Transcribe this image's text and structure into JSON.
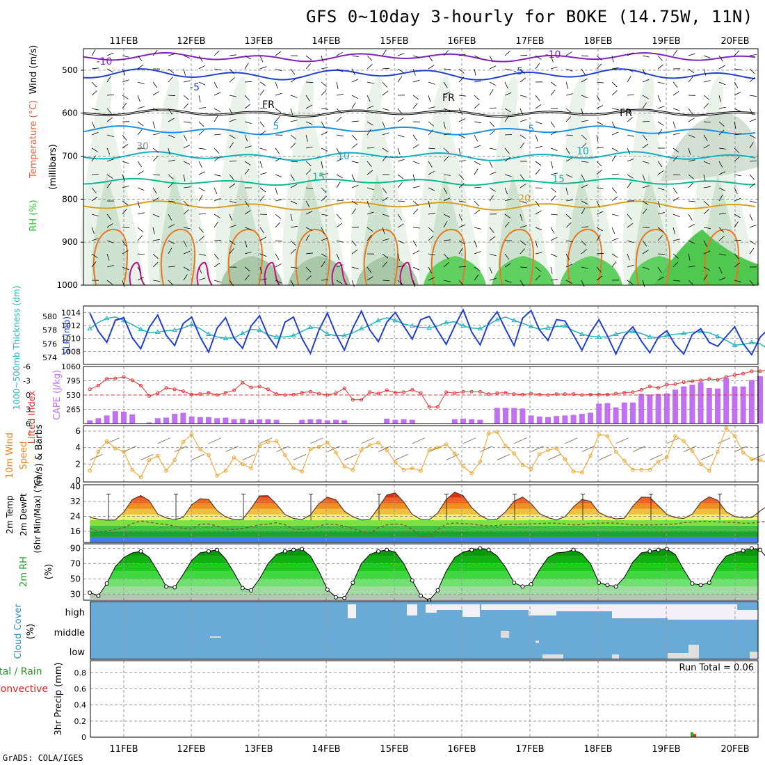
{
  "header": {
    "title": "GFS 0~10day 3-hourly for BOKE (14.75W, 11N)"
  },
  "footer": {
    "credit": "GrADS: COLA/IGES"
  },
  "chart_data": [
    {
      "panel": "upper_air",
      "type": "heatmap",
      "x_dates": [
        "11FEB",
        "12FEB",
        "13FEB",
        "14FEB",
        "15FEB",
        "16FEB",
        "17FEB",
        "18FEB",
        "19FEB",
        "20FEB"
      ],
      "ylabel_parts": [
        "RH (%)",
        "Temperature (°C)",
        "Wind (m/s)",
        "(millibars)"
      ],
      "ylim": [
        1000,
        450
      ],
      "yticks": [
        500,
        600,
        700,
        800,
        900,
        1000
      ],
      "contour_labels": [
        "-10",
        "-10",
        "-5",
        "-5",
        "FR",
        "FR",
        "FR",
        "5",
        "5",
        "10",
        "10",
        "15",
        "15",
        "20",
        "30"
      ],
      "rh_levels": [
        30,
        50,
        70,
        90
      ],
      "temperature_levels": [
        -10,
        -5,
        0,
        5,
        10,
        15,
        20,
        25
      ]
    },
    {
      "panel": "sea_level_pressure_thickness",
      "type": "line",
      "ylabel_left": "1000~500mb Thickness (dm)",
      "ylabel_right": "SLP (mb)",
      "left_ticks": [
        574,
        576,
        578,
        580
      ],
      "right_ticks": [
        1008,
        1010,
        1012,
        1014
      ],
      "series": [
        {
          "name": "SLP (mb)",
          "color": "#1f3fd0",
          "values": [
            1013.9,
            1011.1,
            1009.4,
            1012.8,
            1013.2,
            1010.1,
            1008.4,
            1011.7,
            1013.6,
            1010.5,
            1008.9,
            1012.3,
            1013.3,
            1010.2,
            1007.9,
            1011.6,
            1013.2,
            1010.0,
            1008.5,
            1011.9,
            1013.5,
            1010.4,
            1008.6,
            1012.5,
            1013.3,
            1010.0,
            1007.7,
            1011.3,
            1013.9,
            1010.7,
            1008.2,
            1011.6,
            1014.2,
            1011.3,
            1009.5,
            1012.5,
            1014.0,
            1011.9,
            1009.9,
            1012.9,
            1013.4,
            1011.2,
            1009.1,
            1011.9,
            1014.4,
            1011.0,
            1009.0,
            1012.4,
            1014.1,
            1011.4,
            1008.9,
            1013.1,
            1014.3,
            1011.3,
            1009.7,
            1012.9,
            1012.7,
            1010.5,
            1008.2,
            1010.9,
            1012.9,
            1010.4,
            1007.6,
            1010.4,
            1011.8,
            1009.6,
            1007.8,
            1010.2,
            1011.2,
            1009.0,
            1007.6,
            1010.6,
            1011.5,
            1009.4,
            1008.8,
            1010.3,
            1011.8,
            1009.2,
            1007.5,
            1010.2,
            1011.5,
            1009.4,
            1008.5,
            1010.8,
            1011.6,
            1010.8,
            1010.8
          ]
        },
        {
          "name": "1000~500mb Thickness (dm)",
          "color": "#20b4c0",
          "values": [
            578.2,
            579.1,
            579.7,
            579.9,
            579.4,
            578.8,
            578.1,
            577.6,
            577.7,
            577.9,
            578.0,
            578.3,
            578.8,
            578.2,
            577.4,
            577.0,
            576.8,
            576.9,
            577.5,
            578.1,
            578.0,
            577.3,
            577.0,
            577.0,
            577.2,
            577.8,
            578.4,
            578.3,
            577.4,
            577.2,
            577.2,
            577.6,
            578.2,
            578.7,
            579.4,
            579.8,
            579.4,
            578.9,
            578.6,
            578.4,
            578.3,
            578.6,
            579.1,
            579.2,
            578.6,
            578.3,
            578.2,
            578.8,
            579.5,
            579.9,
            579.4,
            579.0,
            578.5,
            578.1,
            578.3,
            578.5,
            578.6,
            577.9,
            577.4,
            577.1,
            577.0,
            577.0,
            577.4,
            577.7,
            577.8,
            577.5,
            577.0,
            576.9,
            577.2,
            577.4,
            577.5,
            577.7,
            577.8,
            577.6,
            577.1,
            576.5,
            575.8,
            575.9,
            576.2,
            576.0,
            575.2,
            574.6,
            574.6,
            574.9,
            575.5,
            575.9,
            576.2
          ]
        }
      ]
    },
    {
      "panel": "stability",
      "type": "bar",
      "ylabel_left": "Lifted Index",
      "ylabel_right": "CAPE (J/kg)",
      "left_ticks": [
        "-6",
        "-3",
        "0",
        "3",
        "6"
      ],
      "right_ticks": [
        "265",
        "530",
        "795",
        "1060"
      ],
      "series": [
        {
          "name": "CAPE (J/kg)",
          "color": "#c070f0",
          "values": [
            60,
            100,
            150,
            230,
            220,
            170,
            0,
            20,
            100,
            110,
            180,
            200,
            130,
            120,
            120,
            100,
            110,
            80,
            90,
            70,
            80,
            80,
            70,
            0,
            0,
            70,
            80,
            80,
            60,
            70,
            60,
            0,
            0,
            0,
            0,
            90,
            70,
            80,
            70,
            0,
            0,
            0,
            0,
            80,
            90,
            80,
            70,
            0,
            290,
            290,
            290,
            280,
            150,
            130,
            120,
            140,
            150,
            160,
            180,
            200,
            370,
            380,
            300,
            390,
            390,
            550,
            540,
            550,
            560,
            630,
            690,
            720,
            770,
            660,
            650,
            840,
            690,
            690,
            810,
            880,
            850,
            850,
            700,
            640,
            800,
            920,
            920
          ]
        },
        {
          "name": "Lifted Index",
          "color": "#e03030",
          "values": [
            -1.2,
            -2.0,
            -3.4,
            -3.5,
            -3.8,
            -3.1,
            -2.0,
            0.2,
            -0.4,
            -1.5,
            -1.2,
            -0.8,
            -0.1,
            -0.2,
            -0.5,
            0.0,
            -0.5,
            -1.0,
            -2.6,
            -1.6,
            -1.8,
            -1.2,
            -0.2,
            0.0,
            -0.1,
            -0.5,
            -0.7,
            -0.3,
            0.0,
            -0.4,
            -1.4,
            1.0,
            1.0,
            -0.6,
            -0.3,
            -1.0,
            -0.5,
            -0.6,
            -1.1,
            -0.4,
            2.5,
            2.5,
            -0.6,
            -0.4,
            -0.7,
            -0.7,
            -0.7,
            -0.2,
            -0.4,
            -0.5,
            -0.2,
            -0.1,
            -0.3,
            -0.1,
            0.0,
            -0.2,
            -0.2,
            -0.2,
            0.0,
            -0.1,
            -0.1,
            -0.1,
            -0.3,
            -0.5,
            -0.6,
            -1.1,
            -1.8,
            -1.5,
            -2.2,
            -2.3,
            -2.7,
            -2.9,
            -3.1,
            -3.4,
            -3.2,
            -3.8,
            -4.2,
            -4.5,
            -5.0,
            -5.0,
            -5.3,
            -4.9,
            -4.4,
            -3.5,
            -2.9,
            -2.6,
            -2.9
          ]
        }
      ]
    },
    {
      "panel": "wind_10m",
      "type": "line",
      "ylabel_parts": [
        "10m Wind",
        "Speed",
        "(m/s) & Barbs"
      ],
      "yticks": [
        0,
        2,
        4,
        6
      ],
      "series": [
        {
          "name": "10m Wind Speed",
          "color": "#f0a020",
          "values": [
            1.2,
            3.5,
            4.8,
            3.9,
            3.5,
            1.3,
            0.4,
            2.5,
            3.0,
            1.2,
            2.5,
            4.7,
            5.6,
            3.8,
            3.1,
            0.6,
            1.2,
            2.8,
            2.0,
            1.5,
            4.2,
            4.7,
            4.8,
            3.1,
            1.5,
            1.1,
            3.8,
            4.1,
            4.6,
            3.4,
            1.7,
            1.3,
            3.7,
            4.3,
            4.6,
            3.7,
            2.2,
            1.3,
            1.5,
            1.2,
            3.7,
            4.0,
            4.4,
            3.3,
            1.7,
            0.9,
            2.3,
            5.7,
            5.9,
            4.2,
            3.3,
            1.9,
            1.4,
            3.2,
            3.7,
            3.9,
            2.6,
            1.1,
            1.0,
            3.0,
            5.6,
            5.4,
            3.5,
            2.4,
            1.3,
            1.3,
            1.3,
            2.3,
            2.8,
            5.4,
            4.8,
            3.6,
            2.0,
            1.2,
            3.5,
            6.4,
            5.4,
            3.4,
            2.6,
            2.5,
            2.1,
            3.4,
            3.0,
            2.9,
            3.6,
            1.6,
            0.4
          ]
        }
      ]
    },
    {
      "panel": "temperature_2m",
      "type": "area",
      "ylabel_parts": [
        "2m Temp",
        "2m DewPt",
        "(6hr Min/Max) (°C)"
      ],
      "yticks": [
        16,
        24,
        32,
        40
      ],
      "series": [
        {
          "name": "2m Temp",
          "values": [
            23.5,
            22.5,
            22.0,
            22.1,
            26.3,
            33.0,
            35.2,
            32.5,
            25.2,
            23.2,
            22.2,
            23.5,
            30.2,
            33.5,
            33.1,
            27.1,
            23.7,
            22.3,
            22.5,
            28.3,
            35.0,
            35.1,
            30.5,
            25.0,
            22.9,
            22.3,
            24.8,
            30.9,
            34.3,
            32.9,
            26.8,
            23.8,
            22.1,
            22.3,
            28.6,
            35.5,
            36.6,
            31.7,
            25.0,
            22.4,
            22.2,
            25.8,
            33.1,
            37.0,
            35.1,
            28.8,
            24.5,
            22.2,
            22.5,
            26.5,
            32.2,
            34.4,
            30.9,
            25.5,
            23.3,
            22.1,
            23.8,
            29.1,
            33.1,
            32.1,
            26.1,
            23.9,
            22.7,
            23.0,
            29.5,
            34.3,
            34.2,
            29.7,
            25.1,
            23.3,
            22.9,
            25.2,
            31.5,
            34.5,
            32.6,
            26.5,
            23.9,
            23.2,
            23.3,
            26.9,
            30.2,
            30.1,
            25.9,
            23.8,
            22.7,
            22.5,
            22.2
          ]
        },
        {
          "name": "2m DewPt",
          "values": [
            17.5,
            15.9,
            16.1,
            17.0,
            18.0,
            20.2,
            21.5,
            20.9,
            20.2,
            19.6,
            18.9,
            17.5,
            17.2,
            19.8,
            19.9,
            18.8,
            17.1,
            17.0,
            17.5,
            18.5,
            19.5,
            19.9,
            20.6,
            19.5,
            17.2,
            16.9,
            17.4,
            18.8,
            19.9,
            19.6,
            18.7,
            17.5,
            16.0,
            14.8,
            17.9,
            19.5,
            19.9,
            19.6,
            17.0,
            13.3,
            13.6,
            16.8,
            19.9,
            20.5,
            20.1,
            19.9,
            19.3,
            18.9,
            19.1,
            19.6,
            19.7,
            19.9,
            20.0,
            20.2,
            20.4,
            20.4,
            19.9,
            19.4,
            19.6,
            20.3,
            20.3,
            20.5,
            20.4,
            19.9,
            19.5,
            19.4,
            19.4,
            19.5,
            19.7,
            19.9,
            20.7,
            20.9,
            21.4,
            21.3,
            21.1,
            20.9,
            20.8,
            20.3,
            20.4,
            21.0,
            21.2,
            21.3,
            21.6,
            21.8,
            22.3,
            22.7,
            22.9
          ]
        }
      ]
    },
    {
      "panel": "rh_2m",
      "type": "area",
      "ylabel_parts": [
        "2m RH",
        "(%)"
      ],
      "yticks": [
        30,
        50,
        70,
        90
      ],
      "series": [
        {
          "name": "2m RH",
          "values": [
            32,
            28,
            44,
            66,
            78,
            84,
            86,
            78,
            60,
            40,
            39,
            56,
            74,
            84,
            86,
            88,
            76,
            58,
            38,
            35,
            50,
            70,
            82,
            86,
            88,
            89,
            80,
            60,
            36,
            26,
            25,
            45,
            70,
            82,
            86,
            88,
            85,
            70,
            48,
            28,
            22,
            35,
            60,
            78,
            85,
            88,
            90,
            88,
            80,
            65,
            45,
            40,
            43,
            62,
            78,
            84,
            85,
            88,
            83,
            70,
            45,
            42,
            40,
            52,
            72,
            84,
            86,
            88,
            89,
            82,
            62,
            44,
            42,
            45,
            66,
            80,
            84,
            87,
            90,
            88,
            75,
            52,
            40,
            37,
            55,
            76,
            86
          ]
        }
      ]
    },
    {
      "panel": "cloud_cover",
      "type": "heatmap",
      "ylabel_parts": [
        "Cloud Cover",
        "(%)"
      ],
      "row_labels": [
        "high",
        "middle",
        "low"
      ]
    },
    {
      "panel": "precip",
      "type": "bar",
      "ylabel_parts": [
        "Total / Rain",
        "Convective",
        "3hr Precip (mm)"
      ],
      "yticks": [
        "0",
        "0.2",
        "0.4",
        "0.6",
        "0.8"
      ],
      "run_total_label": "Run Total = 0.06",
      "series": [
        {
          "name": "Total / Rain",
          "color": "#20b020",
          "values": [
            0.06
          ]
        },
        {
          "name": "Convective",
          "color": "#f03010",
          "values": [
            0.04
          ]
        }
      ]
    }
  ]
}
